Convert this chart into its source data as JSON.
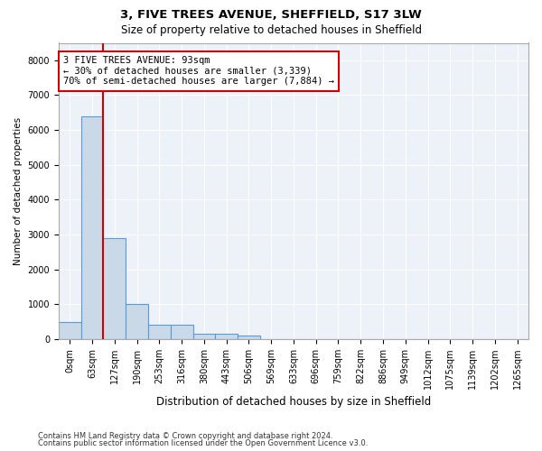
{
  "title_line1": "3, FIVE TREES AVENUE, SHEFFIELD, S17 3LW",
  "title_line2": "Size of property relative to detached houses in Sheffield",
  "xlabel": "Distribution of detached houses by size in Sheffield",
  "ylabel": "Number of detached properties",
  "bin_labels": [
    "0sqm",
    "63sqm",
    "127sqm",
    "190sqm",
    "253sqm",
    "316sqm",
    "380sqm",
    "443sqm",
    "506sqm",
    "569sqm",
    "633sqm",
    "696sqm",
    "759sqm",
    "822sqm",
    "886sqm",
    "949sqm",
    "1012sqm",
    "1075sqm",
    "1139sqm",
    "1202sqm",
    "1265sqm"
  ],
  "bar_heights": [
    500,
    6400,
    2900,
    1000,
    400,
    400,
    150,
    150,
    100,
    0,
    0,
    0,
    0,
    0,
    0,
    0,
    0,
    0,
    0,
    0,
    0
  ],
  "bar_color": "#c9d9e8",
  "bar_edge_color": "#5b9bd5",
  "property_sqm": 93,
  "property_bin_low": 63,
  "property_bin_high": 127,
  "property_bin_low_idx": 1,
  "annotation_text_line1": "3 FIVE TREES AVENUE: 93sqm",
  "annotation_text_line2": "← 30% of detached houses are smaller (3,339)",
  "annotation_text_line3": "70% of semi-detached houses are larger (7,884) →",
  "annotation_box_color": "white",
  "annotation_box_edge_color": "#cc0000",
  "property_line_color": "#cc0000",
  "ylim": [
    0,
    8500
  ],
  "yticks": [
    0,
    1000,
    2000,
    3000,
    4000,
    5000,
    6000,
    7000,
    8000
  ],
  "footer_line1": "Contains HM Land Registry data © Crown copyright and database right 2024.",
  "footer_line2": "Contains public sector information licensed under the Open Government Licence v3.0.",
  "plot_bg_color": "#edf2f8",
  "grid_color": "#ffffff",
  "title1_fontsize": 9.5,
  "title2_fontsize": 8.5,
  "tick_fontsize": 7,
  "ylabel_fontsize": 7.5,
  "xlabel_fontsize": 8.5,
  "footer_fontsize": 6,
  "annot_fontsize": 7.5
}
